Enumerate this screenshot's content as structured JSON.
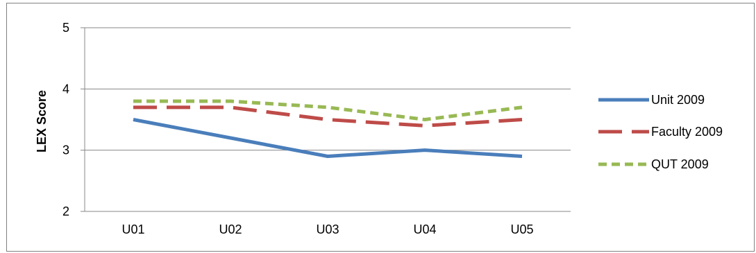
{
  "chart_data": {
    "type": "line",
    "title": "",
    "xlabel": "",
    "ylabel": "LEX Score",
    "categories": [
      "U01",
      "U02",
      "U03",
      "U04",
      "U05"
    ],
    "ylim": [
      2,
      5
    ],
    "yticks": [
      2,
      3,
      4,
      5
    ],
    "grid": true,
    "legend_position": "right",
    "series": [
      {
        "name": "Unit 2009",
        "values": [
          3.5,
          3.2,
          2.9,
          3.0,
          2.9
        ],
        "color": "#4A7EBB",
        "dash": "solid"
      },
      {
        "name": "Faculty 2009",
        "values": [
          3.7,
          3.7,
          3.5,
          3.4,
          3.5
        ],
        "color": "#BE4B48",
        "dash": "long-dash"
      },
      {
        "name": "QUT 2009",
        "values": [
          3.8,
          3.8,
          3.7,
          3.5,
          3.7
        ],
        "color": "#98B954",
        "dash": "short-dash"
      }
    ]
  }
}
